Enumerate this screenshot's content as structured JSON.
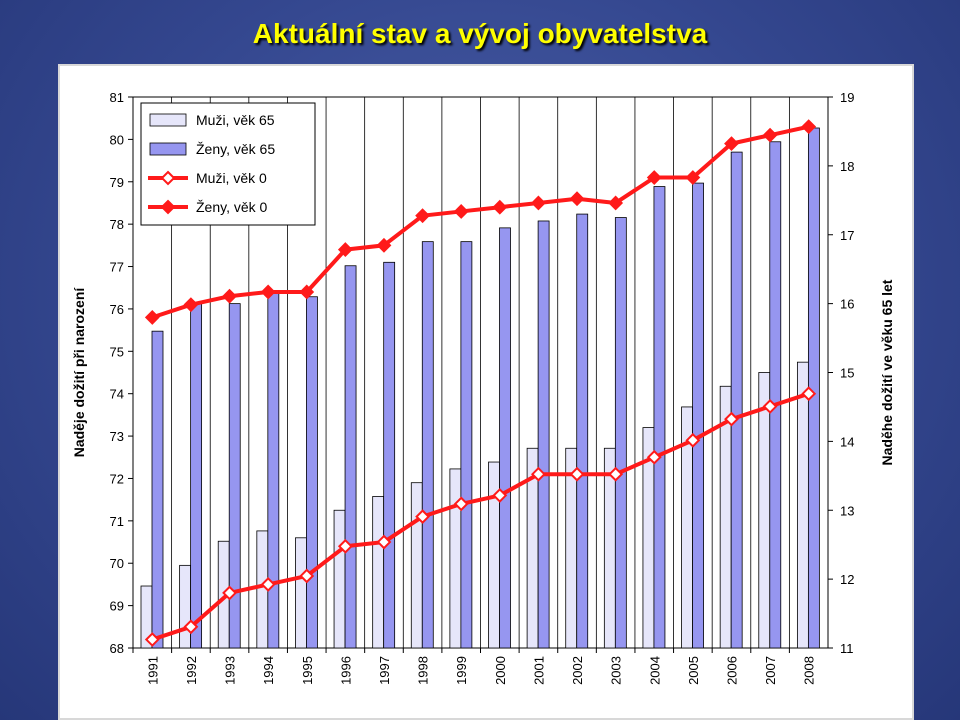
{
  "slide": {
    "title": "Aktuální stav a vývoj obyvatelstva"
  },
  "colors": {
    "men65_bar": "#e6e6fa",
    "women65_bar": "#9696f0",
    "line": "#ff1a1a",
    "background": "#34478f",
    "title": "#ffff00"
  },
  "chart_data": {
    "type": "bar+line",
    "categories": [
      "1991",
      "1992",
      "1993",
      "1994",
      "1995",
      "1996",
      "1997",
      "1998",
      "1999",
      "2000",
      "2001",
      "2002",
      "2003",
      "2004",
      "2005",
      "2006",
      "2007",
      "2008"
    ],
    "ylabel_left": "Naděje dožití při narození",
    "ylabel_right": "Naděhe dožití ve věku 65 let",
    "ylim_left": [
      68,
      81
    ],
    "ylim_right": [
      11,
      19
    ],
    "yticks_left": [
      68,
      69,
      70,
      71,
      72,
      73,
      74,
      75,
      76,
      77,
      78,
      79,
      80,
      81
    ],
    "yticks_right": [
      11,
      12,
      13,
      14,
      15,
      16,
      17,
      18,
      19
    ],
    "grid": "vertical",
    "legend_position": "top-left",
    "series": [
      {
        "name": "Muži, věk 65",
        "kind": "bar",
        "axis": "right",
        "values": [
          11.9,
          12.2,
          12.55,
          12.7,
          12.6,
          13.0,
          13.2,
          13.4,
          13.6,
          13.7,
          13.9,
          13.9,
          13.9,
          14.2,
          14.5,
          14.8,
          15.0,
          15.15
        ]
      },
      {
        "name": "Ženy, věk 65",
        "kind": "bar",
        "axis": "right",
        "values": [
          15.6,
          16.0,
          16.0,
          16.15,
          16.1,
          16.55,
          16.6,
          16.9,
          16.9,
          17.1,
          17.2,
          17.3,
          17.25,
          17.7,
          17.75,
          18.2,
          18.35,
          18.55
        ]
      },
      {
        "name": "Muži, věk 0",
        "kind": "line",
        "axis": "left",
        "marker": "open-diamond",
        "values": [
          68.2,
          68.5,
          69.3,
          69.5,
          69.7,
          70.4,
          70.5,
          71.1,
          71.4,
          71.6,
          72.1,
          72.1,
          72.1,
          72.5,
          72.9,
          73.4,
          73.7,
          74.0
        ]
      },
      {
        "name": "Ženy, věk 0",
        "kind": "line",
        "axis": "left",
        "marker": "filled-diamond",
        "values": [
          75.8,
          76.1,
          76.3,
          76.4,
          76.4,
          77.4,
          77.5,
          78.2,
          78.3,
          78.4,
          78.5,
          78.6,
          78.5,
          79.1,
          79.1,
          79.9,
          80.1,
          80.3
        ]
      }
    ]
  }
}
